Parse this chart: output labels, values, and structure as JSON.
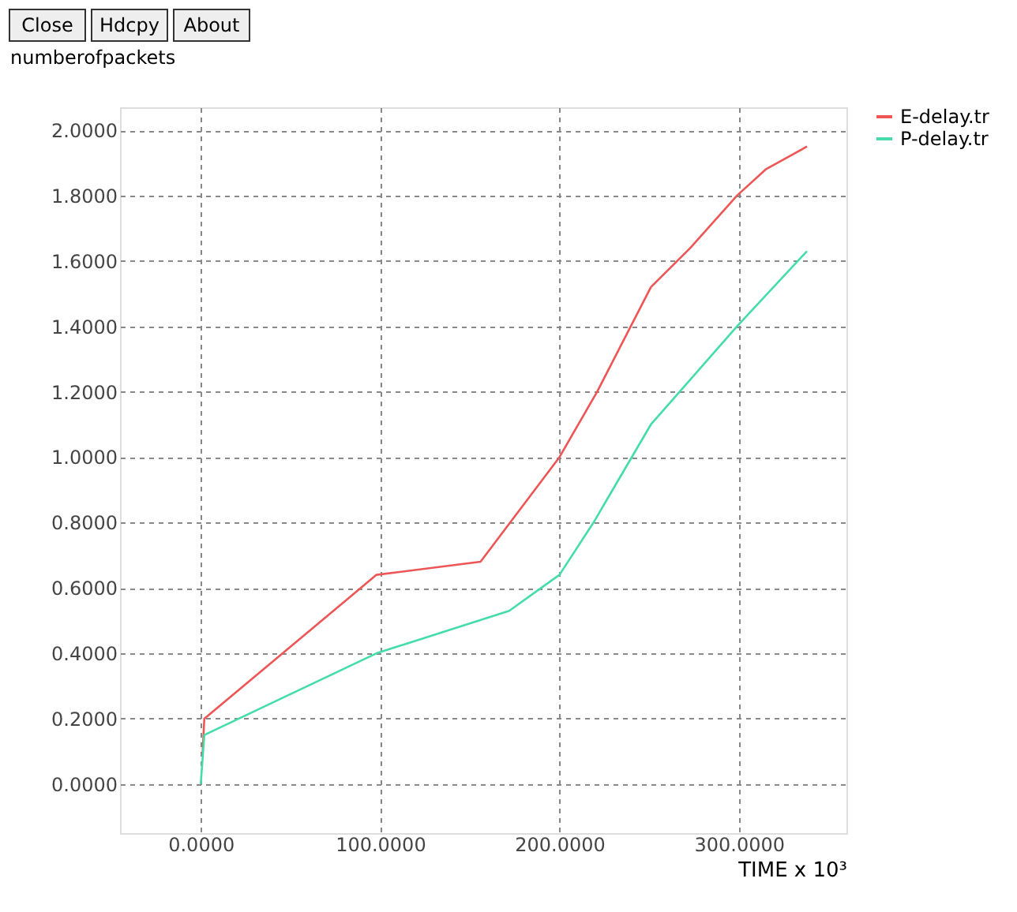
{
  "chart_data": {
    "type": "line",
    "xlabel": "TIME x 10³",
    "ylabel": "numberofpackets",
    "annotations": [
      "Close",
      "Hdcpy",
      "About"
    ],
    "xlim": [
      -45,
      360
    ],
    "ylim": [
      -0.15,
      2.07
    ],
    "xticks": [
      {
        "value": 0,
        "label": "0.0000"
      },
      {
        "value": 100,
        "label": "100.0000"
      },
      {
        "value": 200,
        "label": "200.0000"
      },
      {
        "value": 300,
        "label": "300.0000"
      }
    ],
    "yticks": [
      {
        "value": 0,
        "label": "0.0000"
      },
      {
        "value": 0.2,
        "label": "0.2000"
      },
      {
        "value": 0.4,
        "label": "0.4000"
      },
      {
        "value": 0.6,
        "label": "0.6000"
      },
      {
        "value": 0.8,
        "label": "0.8000"
      },
      {
        "value": 1.0,
        "label": "1.0000"
      },
      {
        "value": 1.2,
        "label": "1.2000"
      },
      {
        "value": 1.4,
        "label": "1.4000"
      },
      {
        "value": 1.6,
        "label": "1.6000"
      },
      {
        "value": 1.8,
        "label": "1.8000"
      },
      {
        "value": 2.0,
        "label": "2.0000"
      }
    ],
    "grid": true,
    "legend": "top right",
    "line_style": "solid",
    "marker": "none",
    "series": [
      {
        "name": "E-delay.tr",
        "color": "#ee5555",
        "x": [
          1,
          2,
          98,
          156,
          200,
          221,
          251,
          273,
          299,
          315,
          338
        ],
        "values": [
          0.09,
          0.2,
          0.64,
          0.68,
          1.0,
          1.2,
          1.52,
          1.64,
          1.8,
          1.88,
          1.95
        ]
      },
      {
        "name": "P-delay.tr",
        "color": "#44ddaa",
        "x": [
          0,
          2,
          98,
          172,
          200,
          219,
          251,
          299,
          338
        ],
        "values": [
          0.0,
          0.15,
          0.4,
          0.53,
          0.64,
          0.8,
          1.1,
          1.4,
          1.63
        ]
      }
    ]
  }
}
